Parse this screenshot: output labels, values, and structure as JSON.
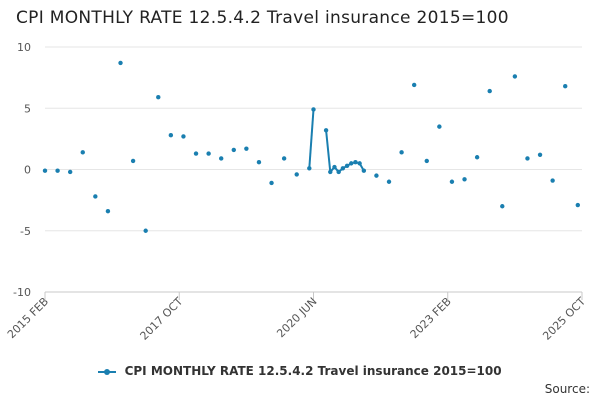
{
  "title": "CPI MONTHLY RATE 12.5.4.2 Travel insurance 2015=100",
  "source_label": "Source:",
  "colors": {
    "series": "#1a7fb0",
    "grid": "#e6e6e6",
    "axis": "#c8c8c8",
    "text": "#555555"
  },
  "chart_data": {
    "type": "line",
    "title": "CPI MONTHLY RATE 12.5.4.2 Travel insurance 2015=100",
    "xlabel": "",
    "ylabel": "",
    "ylim": [
      -10,
      10
    ],
    "yticks": [
      10,
      5,
      0,
      -5,
      -10
    ],
    "xticks": [
      "2015 FEB",
      "2017 OCT",
      "2020 JUN",
      "2023 FEB",
      "2025 OCT"
    ],
    "legend_position": "bottom",
    "grid": true,
    "series": [
      {
        "name": "CPI MONTHLY RATE 12.5.4.2 Travel insurance 2015=100",
        "points": [
          {
            "x": "2015-02",
            "y": -0.1
          },
          {
            "x": "2015-05",
            "y": -0.1
          },
          {
            "x": "2015-08",
            "y": -0.2
          },
          {
            "x": "2015-11",
            "y": 1.4
          },
          {
            "x": "2016-02",
            "y": -2.2
          },
          {
            "x": "2016-05",
            "y": -3.4
          },
          {
            "x": "2016-08",
            "y": 8.7
          },
          {
            "x": "2016-11",
            "y": 0.7
          },
          {
            "x": "2017-02",
            "y": -5.0
          },
          {
            "x": "2017-05",
            "y": 5.9
          },
          {
            "x": "2017-08",
            "y": 2.8
          },
          {
            "x": "2017-11",
            "y": 2.7
          },
          {
            "x": "2018-02",
            "y": 1.3
          },
          {
            "x": "2018-05",
            "y": 1.3
          },
          {
            "x": "2018-08",
            "y": 0.9
          },
          {
            "x": "2018-11",
            "y": 1.6
          },
          {
            "x": "2019-02",
            "y": 1.7
          },
          {
            "x": "2019-05",
            "y": 0.6
          },
          {
            "x": "2019-08",
            "y": -1.1
          },
          {
            "x": "2019-11",
            "y": 0.9
          },
          {
            "x": "2020-02",
            "y": -0.4
          },
          {
            "x": "2020-05",
            "y": 0.1
          },
          {
            "x": "2020-06",
            "y": 4.9
          },
          {
            "x": "2020-07",
            "y": null
          },
          {
            "x": "2020-09",
            "y": 3.2
          },
          {
            "x": "2020-10",
            "y": -0.2
          },
          {
            "x": "2020-11",
            "y": 0.2
          },
          {
            "x": "2020-12",
            "y": -0.2
          },
          {
            "x": "2021-01",
            "y": 0.1
          },
          {
            "x": "2021-02",
            "y": 0.3
          },
          {
            "x": "2021-03",
            "y": 0.5
          },
          {
            "x": "2021-04",
            "y": 0.6
          },
          {
            "x": "2021-05",
            "y": 0.5
          },
          {
            "x": "2021-06",
            "y": -0.1
          },
          {
            "x": "2021-09",
            "y": -0.5
          },
          {
            "x": "2021-12",
            "y": -1.0
          },
          {
            "x": "2022-03",
            "y": 1.4
          },
          {
            "x": "2022-06",
            "y": 6.9
          },
          {
            "x": "2022-09",
            "y": 0.7
          },
          {
            "x": "2022-12",
            "y": 3.5
          },
          {
            "x": "2023-03",
            "y": -1.0
          },
          {
            "x": "2023-06",
            "y": -0.8
          },
          {
            "x": "2023-09",
            "y": 1.0
          },
          {
            "x": "2023-12",
            "y": 6.4
          },
          {
            "x": "2024-03",
            "y": -3.0
          },
          {
            "x": "2024-06",
            "y": 7.6
          },
          {
            "x": "2024-09",
            "y": 0.9
          },
          {
            "x": "2024-12",
            "y": 1.2
          },
          {
            "x": "2025-03",
            "y": -0.9
          },
          {
            "x": "2025-06",
            "y": 6.8
          },
          {
            "x": "2025-09",
            "y": -2.9
          }
        ]
      }
    ]
  }
}
